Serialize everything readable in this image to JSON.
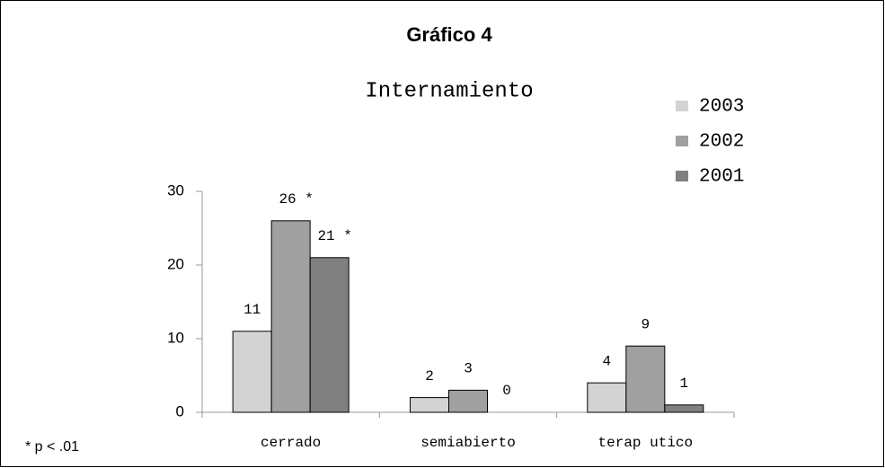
{
  "chart_data": {
    "type": "bar",
    "title": "Gráfico 4",
    "subtitle": "Internamiento",
    "categories": [
      "cerrado",
      "semiabierto",
      "terap utico"
    ],
    "series": [
      {
        "name": "2003",
        "color": "#d3d3d3",
        "values": [
          11,
          2,
          4
        ]
      },
      {
        "name": "2002",
        "color": "#a0a0a0",
        "values": [
          26,
          3,
          9
        ],
        "value_labels": [
          "26 *",
          "3",
          "9"
        ]
      },
      {
        "name": "2001",
        "color": "#808080",
        "values": [
          21,
          0,
          1
        ],
        "value_labels": [
          "21 *",
          "0",
          "1"
        ]
      }
    ],
    "ylim": [
      0,
      30
    ],
    "yticks": [
      0,
      10,
      20,
      30
    ],
    "grid": false,
    "legend": "right",
    "annotations": [
      "* p < .01"
    ]
  }
}
